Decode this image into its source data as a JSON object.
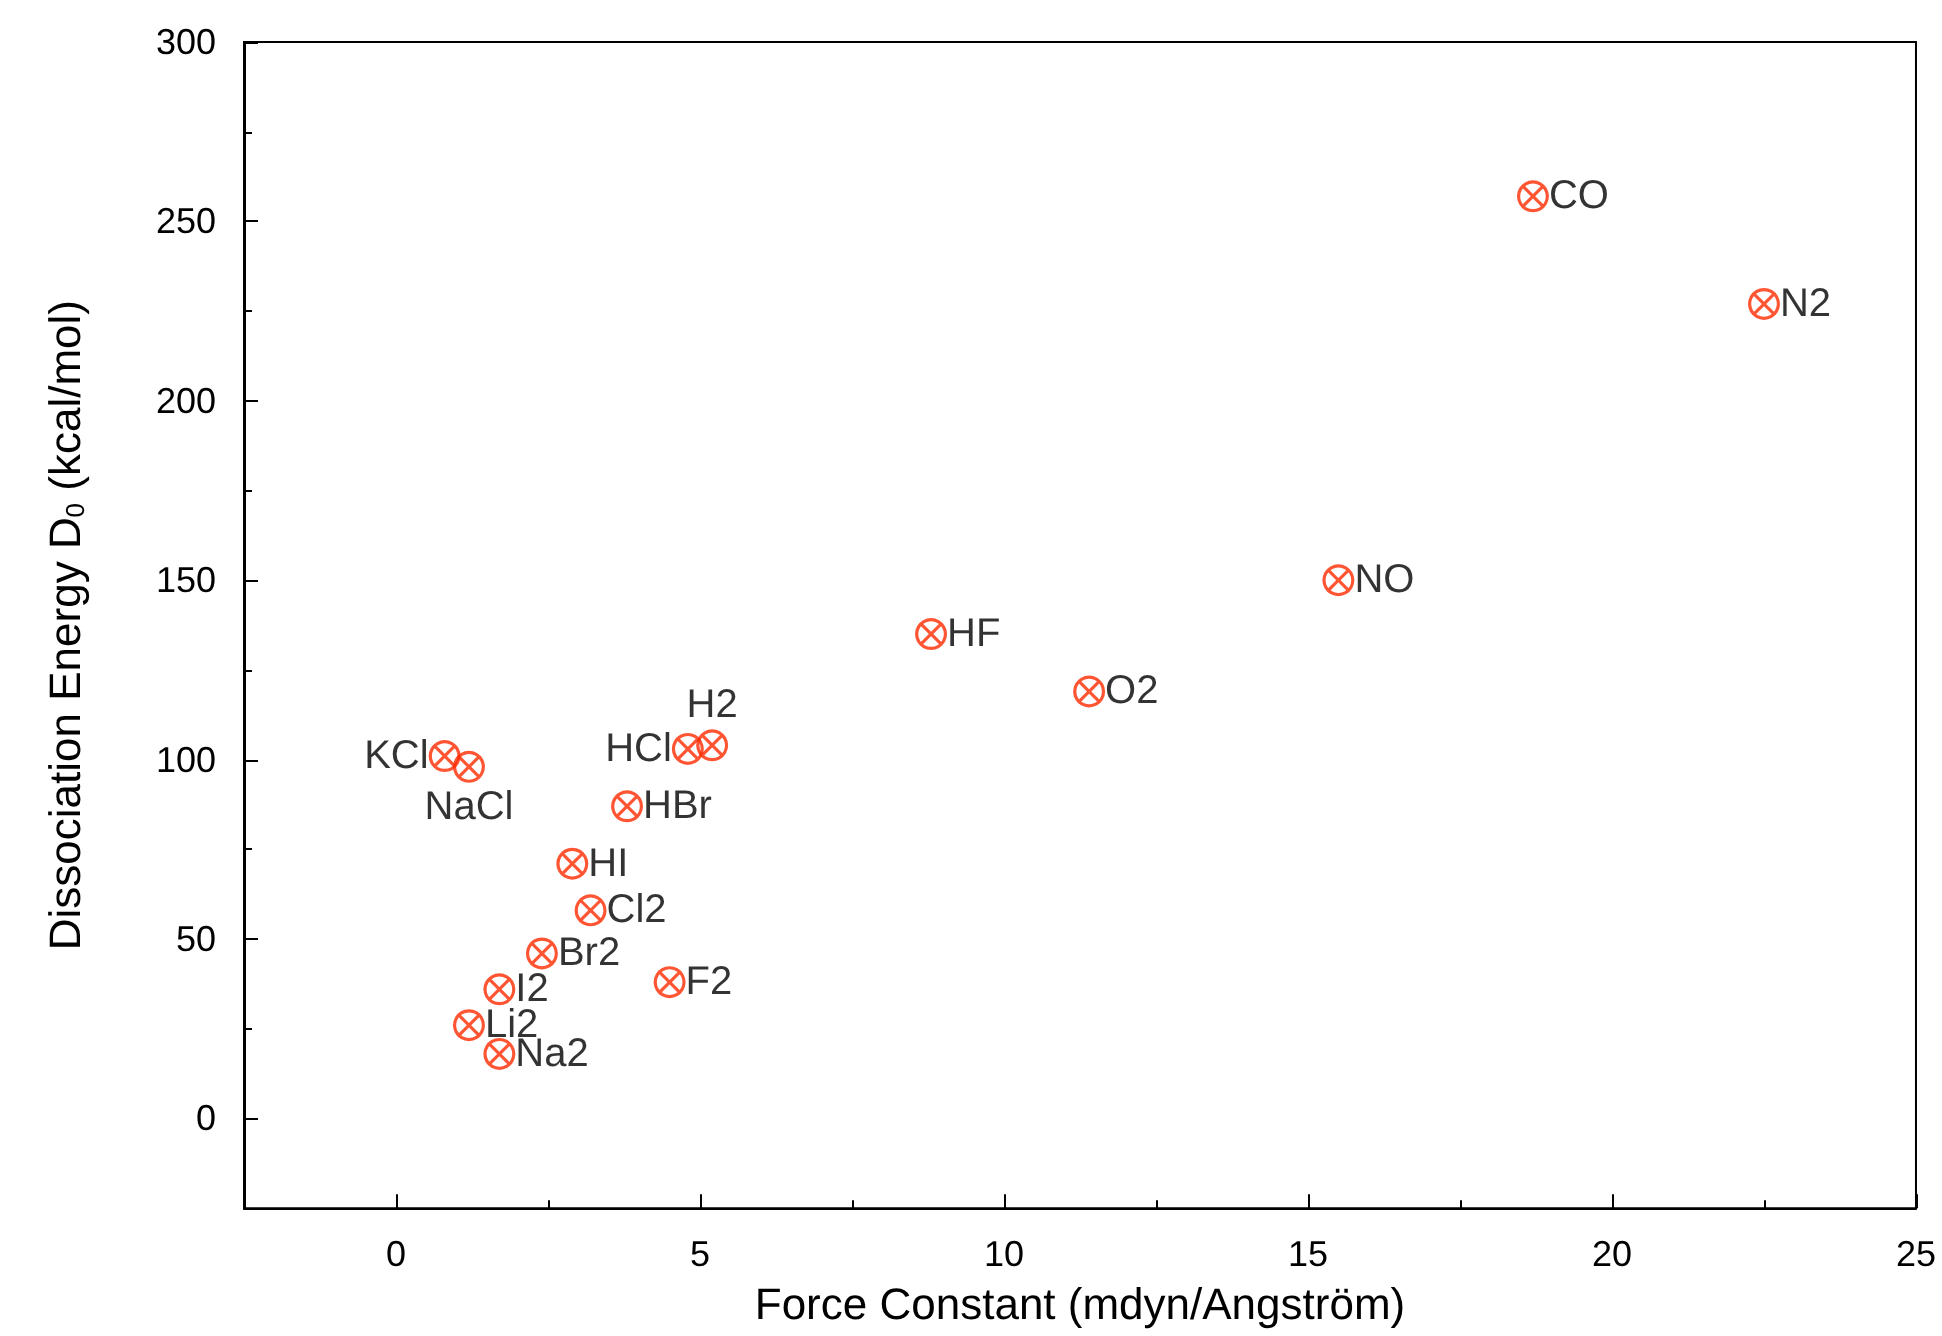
{
  "chart_data": {
    "type": "scatter",
    "xlabel": "Force Constant (mdyn/Angström)",
    "ylabel": "Dissociation Energy D$_{0}$ (kcal/mol)",
    "x": [
      18.7,
      22.5,
      15.5,
      8.8,
      11.4,
      4.8,
      5.2,
      0.8,
      1.2,
      3.8,
      2.9,
      3.2,
      2.4,
      4.5,
      1.7,
      1.2,
      1.7
    ],
    "series": [
      {
        "color": "#ff2a00",
        "values": [
          257,
          227,
          150,
          135,
          119,
          103,
          104,
          101,
          98,
          87,
          71,
          58,
          46,
          38,
          36,
          26,
          18
        ]
      }
    ],
    "annotations": [
      {
        "text": "CO",
        "x": 18.7,
        "y": 257
      },
      {
        "text": "N2",
        "x": 22.5,
        "y": 227
      },
      {
        "text": "NO",
        "x": 15.5,
        "y": 150
      },
      {
        "text": "HF",
        "x": 8.8,
        "y": 135
      },
      {
        "text": "O2",
        "x": 11.4,
        "y": 119
      },
      {
        "text": "HCl",
        "x": 4.8,
        "y": 103
      },
      {
        "text": "H2",
        "x": 5.2,
        "y": 104
      },
      {
        "text": "KCl",
        "x": 0.8,
        "y": 101
      },
      {
        "text": "NaCl",
        "x": 1.2,
        "y": 98
      },
      {
        "text": "HBr",
        "x": 3.8,
        "y": 87
      },
      {
        "text": "HI",
        "x": 2.9,
        "y": 71
      },
      {
        "text": "Cl2",
        "x": 3.2,
        "y": 58
      },
      {
        "text": "Br2",
        "x": 2.4,
        "y": 46
      },
      {
        "text": "F2",
        "x": 4.5,
        "y": 38
      },
      {
        "text": "I2",
        "x": 1.7,
        "y": 36
      },
      {
        "text": "Li2",
        "x": 1.2,
        "y": 26
      },
      {
        "text": "Na2",
        "x": 1.7,
        "y": 18
      }
    ],
    "xlim": [
      -2.5,
      25
    ],
    "xticks": [
      0,
      5,
      10,
      15,
      20,
      25
    ],
    "ylim": [
      -25,
      300
    ],
    "yticks": [
      0,
      50,
      100,
      150,
      200,
      250,
      300
    ],
    "marker": "cross",
    "grid": false
  }
}
